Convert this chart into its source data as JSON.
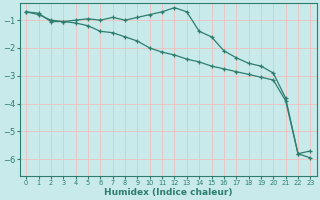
{
  "xlabel": "Humidex (Indice chaleur)",
  "bg_color": "#c8eaea",
  "grid_color": "#f0c0c0",
  "line_color": "#2e7d6e",
  "spine_color": "#2e7d6e",
  "xlim": [
    -0.5,
    23.5
  ],
  "ylim": [
    -6.6,
    -0.4
  ],
  "yticks": [
    -6,
    -5,
    -4,
    -3,
    -2,
    -1
  ],
  "xticks": [
    0,
    1,
    2,
    3,
    4,
    5,
    6,
    7,
    8,
    9,
    10,
    11,
    12,
    13,
    14,
    15,
    16,
    17,
    18,
    19,
    20,
    21,
    22,
    23
  ],
  "series1_x": [
    0,
    1,
    2,
    3,
    4,
    5,
    6,
    7,
    8,
    9,
    10,
    11,
    12,
    13,
    14,
    15,
    16,
    17,
    18,
    19,
    20,
    21,
    22,
    23
  ],
  "series1_y": [
    -0.7,
    -0.75,
    -1.05,
    -1.05,
    -1.0,
    -0.95,
    -1.0,
    -0.9,
    -1.0,
    -0.9,
    -0.8,
    -0.7,
    -0.55,
    -0.7,
    -1.4,
    -1.6,
    -2.1,
    -2.35,
    -2.55,
    -2.65,
    -2.9,
    -3.8,
    -5.8,
    -5.7
  ],
  "series2_x": [
    0,
    1,
    2,
    3,
    4,
    5,
    6,
    7,
    8,
    9,
    10,
    11,
    12,
    13,
    14,
    15,
    16,
    17,
    18,
    19,
    20,
    21,
    22,
    23
  ],
  "series2_y": [
    -0.7,
    -0.8,
    -1.0,
    -1.05,
    -1.1,
    -1.2,
    -1.4,
    -1.45,
    -1.6,
    -1.75,
    -2.0,
    -2.15,
    -2.25,
    -2.4,
    -2.5,
    -2.65,
    -2.75,
    -2.85,
    -2.95,
    -3.05,
    -3.15,
    -3.9,
    -5.8,
    -5.95
  ]
}
